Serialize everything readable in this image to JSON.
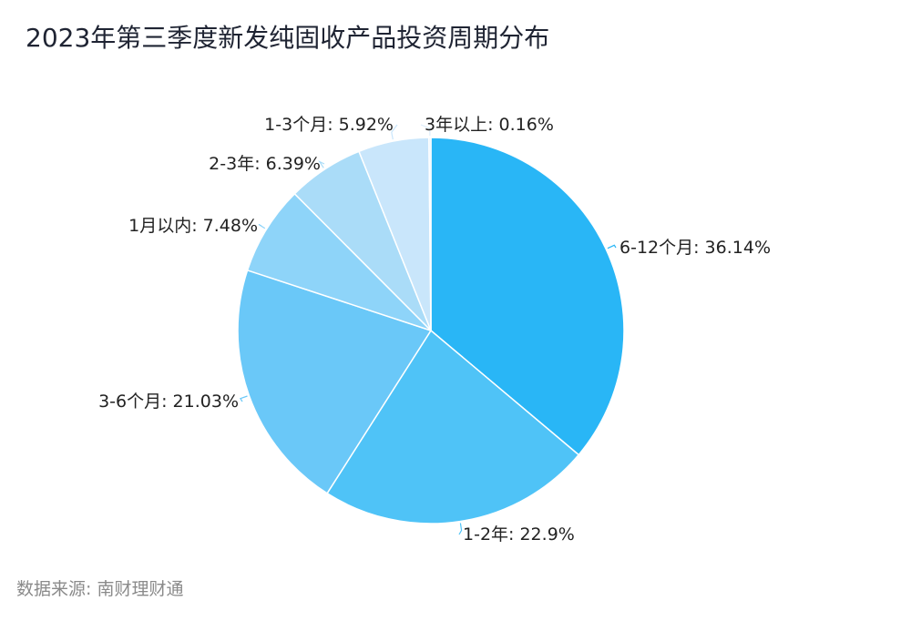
{
  "title": "2023年第三季度新发纯固收产品投资周期分布",
  "source": "数据来源: 南财理财通",
  "chart_data": {
    "type": "pie",
    "title": "2023年第三季度新发纯固收产品投资周期分布",
    "slices": [
      {
        "label": "6-12个月",
        "value": 36.14,
        "display": "6-12个月: 36.14%",
        "color": "#29b6f6"
      },
      {
        "label": "1-2年",
        "value": 22.9,
        "display": "1-2年: 22.9%",
        "color": "#4fc3f7"
      },
      {
        "label": "3-6个月",
        "value": 21.03,
        "display": "3-6个月: 21.03%",
        "color": "#6ac8f8"
      },
      {
        "label": "1月以内",
        "value": 7.48,
        "display": "1月以内: 7.48%",
        "color": "#8ed4f9"
      },
      {
        "label": "2-3年",
        "value": 6.39,
        "display": "2-3年: 6.39%",
        "color": "#aadcf8"
      },
      {
        "label": "1-3个月",
        "value": 5.92,
        "display": "1-3个月: 5.92%",
        "color": "#c9e6fb"
      },
      {
        "label": "3年以上",
        "value": 0.16,
        "display": "3年以上: 0.16%",
        "color": "#dcedfb"
      }
    ]
  }
}
